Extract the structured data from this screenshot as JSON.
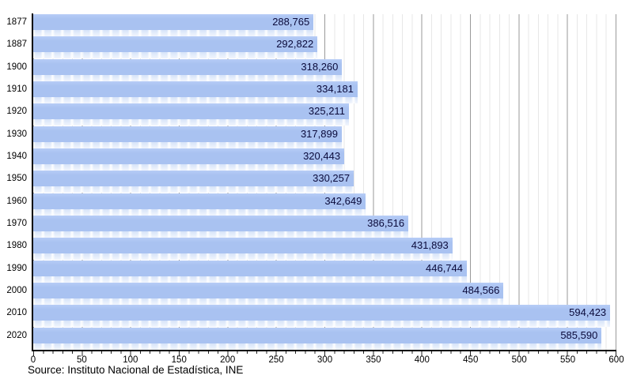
{
  "chart_data": {
    "type": "bar",
    "orientation": "horizontal",
    "title": "",
    "xlabel": "",
    "ylabel": "",
    "categories": [
      "1877",
      "1887",
      "1900",
      "1910",
      "1920",
      "1930",
      "1940",
      "1950",
      "1960",
      "1970",
      "1980",
      "1990",
      "2000",
      "2010",
      "2020"
    ],
    "values": [
      288765,
      292822,
      318260,
      334181,
      325211,
      317899,
      320443,
      330257,
      342649,
      386516,
      431893,
      446744,
      484566,
      594423,
      585590
    ],
    "value_labels": [
      "288,765",
      "292,822",
      "318,260",
      "334,181",
      "325,211",
      "317,899",
      "320,443",
      "330,257",
      "342,649",
      "386,516",
      "431,893",
      "446,744",
      "484,566",
      "594,423",
      "585,590"
    ],
    "x_ticks": [
      0,
      50,
      100,
      150,
      200,
      250,
      300,
      350,
      400,
      450,
      500,
      550,
      600
    ],
    "xlim": [
      0,
      600
    ],
    "x_scale_divisor": 1000,
    "grid": "vertical, minor every 10 and major every 50",
    "legend_position": "none",
    "source": "Source: Instituto Nacional de Estadística, INE",
    "colors": {
      "bar": "#a9c2f1",
      "bar_reflection": "#cadbf7",
      "value_text": "#0b0b3b",
      "axis": "#000000",
      "grid_major": "#9a9a9a",
      "grid_minor": "#e7e7e7"
    }
  }
}
